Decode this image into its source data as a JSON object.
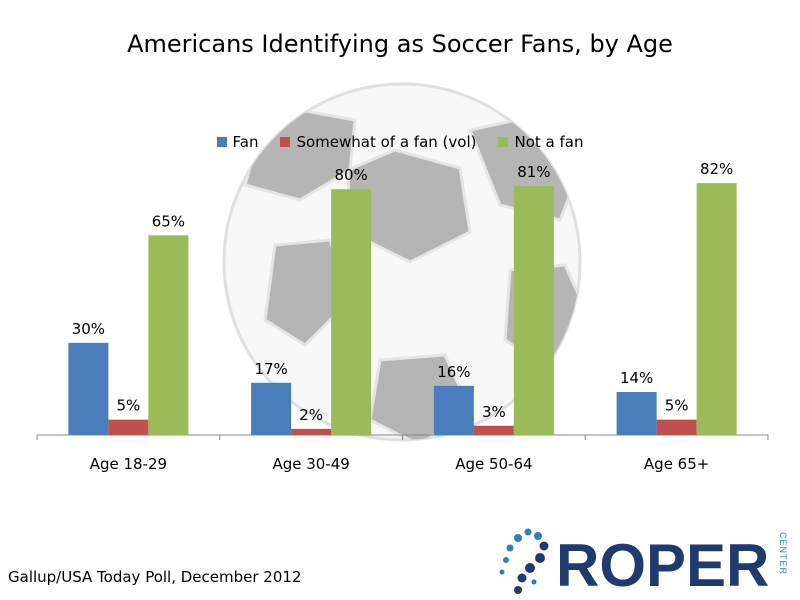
{
  "chart_data": {
    "type": "bar",
    "title": "Americans Identifying as Soccer Fans, by Age",
    "categories": [
      "Age 18-29",
      "Age 30-49",
      "Age 50-64",
      "Age 65+"
    ],
    "series": [
      {
        "name": "Fan",
        "values": [
          30,
          17,
          16,
          14
        ],
        "color": "#4a7ebb"
      },
      {
        "name": "Somewhat of a fan (vol)",
        "values": [
          5,
          2,
          3,
          5
        ],
        "color": "#c0504d"
      },
      {
        "name": "Not a fan",
        "values": [
          65,
          80,
          81,
          82
        ],
        "color": "#9bbb59"
      }
    ],
    "value_suffix": "%",
    "ylim": [
      0,
      100
    ],
    "grid": false,
    "legend_position": "top"
  },
  "source": "Gallup/USA Today Poll, December 2012",
  "logo": {
    "text": "ROPER",
    "subtext": "CENTER",
    "color": "#1f3a6e"
  },
  "background_image": "soccer-ball"
}
